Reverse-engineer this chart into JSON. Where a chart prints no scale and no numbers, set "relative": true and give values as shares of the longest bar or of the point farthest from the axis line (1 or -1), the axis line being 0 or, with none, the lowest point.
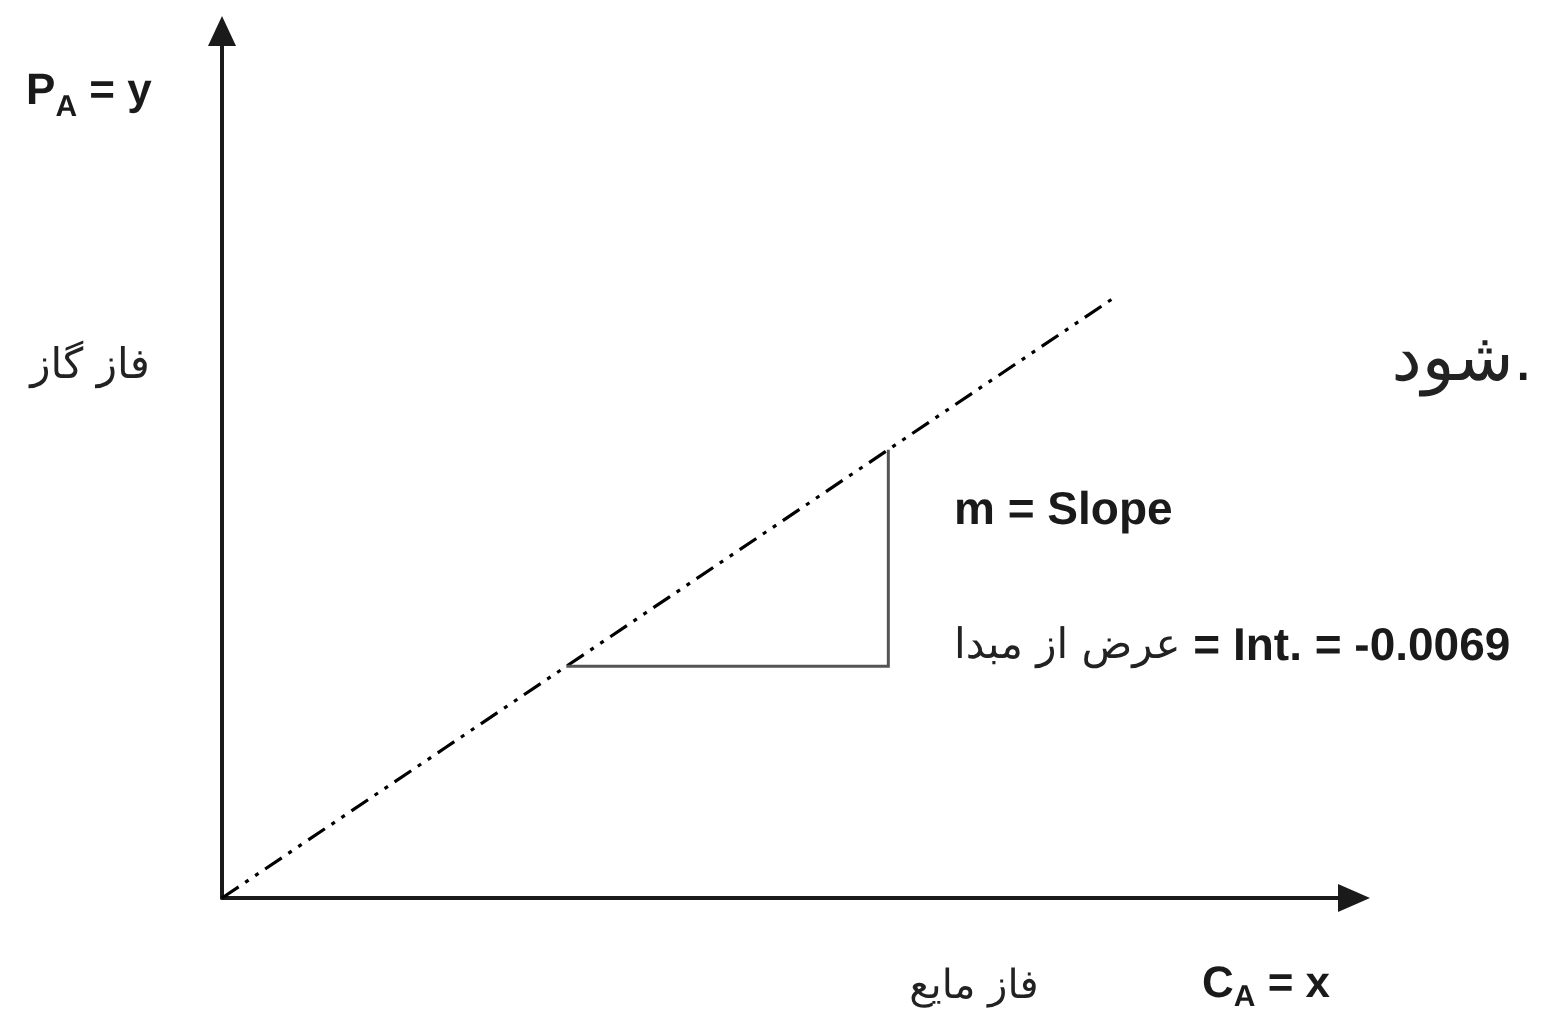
{
  "chart_data": {
    "type": "line",
    "relative": true,
    "xlabel": "C$_{A}$ = x",
    "ylabel": "P$_{A}$ = y",
    "annotations": [
      "فاز گاز",
      "فاز مایع",
      "شود.",
      "m = Slope",
      "عرض از مبدا = Int. = -0.0069"
    ],
    "categories": [
      null,
      null,
      null,
      null,
      null,
      null
    ],
    "values": [
      0,
      0.25,
      0.5,
      0.75,
      1,
      null
    ],
    "color": "#000000",
    "line_style": "dashed"
  }
}
